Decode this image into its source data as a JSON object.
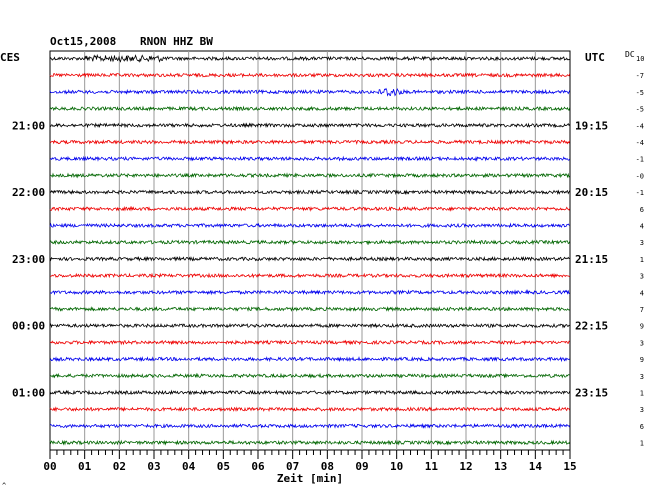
{
  "header": {
    "date": "Oct15,2008",
    "station": "RNON HHZ BW"
  },
  "left_timezone": "CES",
  "right_timezone": "UTC",
  "dc_label": "DC",
  "dc_top_value": "10",
  "corner_mark": "^",
  "chart_data": {
    "type": "line",
    "title": "Oct15,2008   RNON HHZ BW",
    "xlabel": "Zeit [min]",
    "x_ticks": [
      "00",
      "01",
      "02",
      "03",
      "04",
      "05",
      "06",
      "07",
      "08",
      "09",
      "10",
      "11",
      "12",
      "13",
      "14",
      "15"
    ],
    "xlim": [
      0,
      15
    ],
    "trace_count": 24,
    "trace_colors": [
      "#000000",
      "#ee0000",
      "#0000ee",
      "#006600"
    ],
    "left_hour_labels": [
      "21:00",
      "22:00",
      "23:00",
      "00:00",
      "01:00"
    ],
    "right_hour_labels": [
      "19:15",
      "20:15",
      "21:15",
      "22:15",
      "23:15"
    ],
    "dc_offsets": [
      "-7",
      "-5",
      "-5",
      "-4",
      "-4",
      "-1",
      "-0",
      "-1",
      "6",
      "4",
      "3",
      "1",
      "3",
      "4",
      "7",
      "9",
      "3",
      "9",
      "3",
      "1",
      "3",
      "6",
      "1"
    ],
    "grid": true
  }
}
